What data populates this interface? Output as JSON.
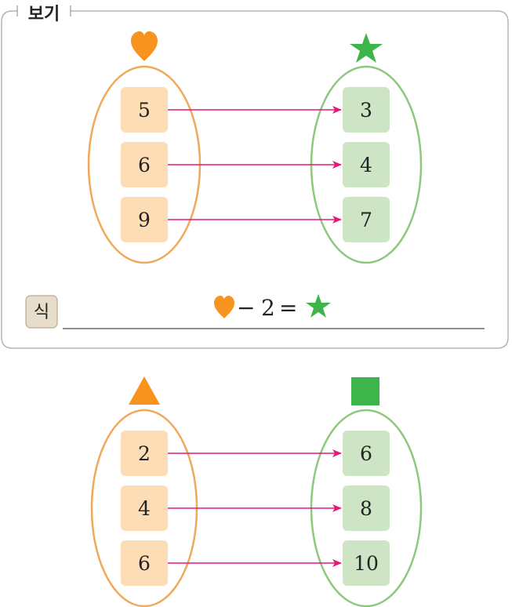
{
  "example": {
    "label": "보기",
    "left_symbol": "heart-icon",
    "right_symbol": "star-icon",
    "left_values": [
      "5",
      "6",
      "9"
    ],
    "right_values": [
      "3",
      "4",
      "7"
    ],
    "formula_prefix_label": "식",
    "formula": {
      "op": "−",
      "num": "2",
      "eq": "="
    }
  },
  "problem": {
    "left_symbol": "triangle-icon",
    "right_symbol": "square-icon",
    "left_values": [
      "2",
      "4",
      "6"
    ],
    "right_values": [
      "6",
      "8",
      "10"
    ]
  },
  "colors": {
    "orange": "#F7931E",
    "orange_box": "#FDDDB5",
    "orange_ellipse": "#F0A95A",
    "green": "#3DB54A",
    "green_box": "#CDE5C4",
    "green_ellipse": "#8CC97C",
    "arrow": "#E5197A",
    "frame": "#B5B5B5"
  }
}
